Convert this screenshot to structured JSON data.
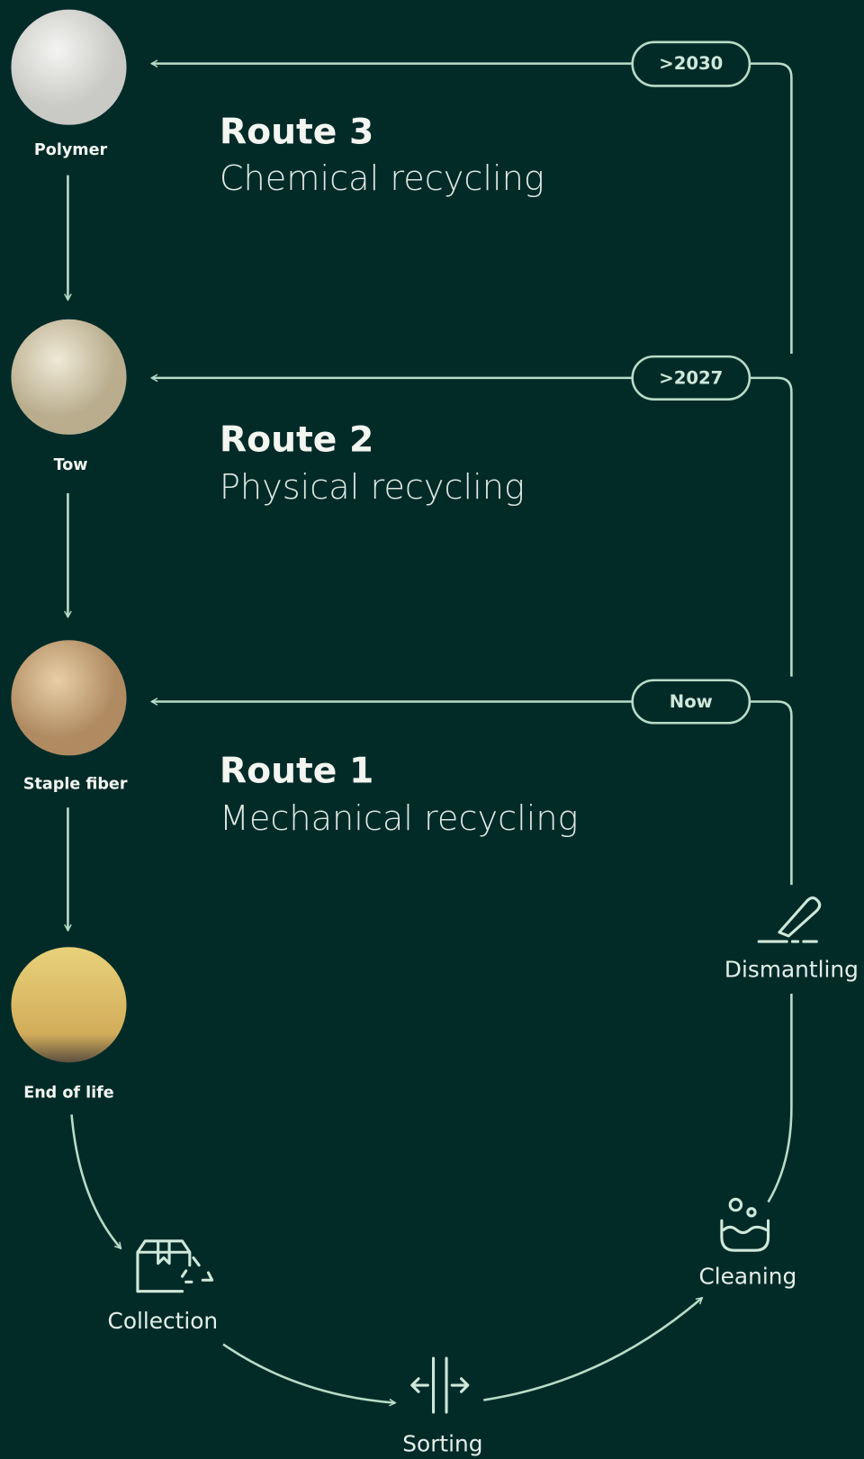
{
  "nodes": [
    {
      "label": "Polymer"
    },
    {
      "label": "Tow"
    },
    {
      "label": "Staple fiber"
    },
    {
      "label": "End of life"
    }
  ],
  "routes": [
    {
      "title": "Route 3",
      "subtitle": "Chemical recycling",
      "badge": ">2030"
    },
    {
      "title": "Route 2",
      "subtitle": "Physical recycling",
      "badge": ">2027"
    },
    {
      "title": "Route 1",
      "subtitle": "Mechanical recycling",
      "badge": "Now"
    }
  ],
  "steps": [
    {
      "label": "Dismantling"
    },
    {
      "label": "Cleaning"
    },
    {
      "label": "Sorting"
    },
    {
      "label": "Collection"
    }
  ]
}
